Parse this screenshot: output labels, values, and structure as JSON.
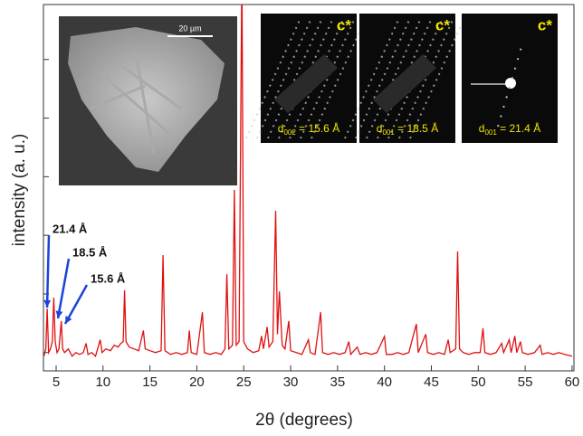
{
  "chart_data": {
    "type": "line",
    "xlabel": "2θ (degrees)",
    "ylabel": "intensity (a. u.)",
    "xlim": [
      3.65,
      60.2
    ],
    "xticks": [
      5,
      10,
      15,
      20,
      25,
      30,
      35,
      40,
      45,
      50,
      55,
      60
    ],
    "ylim": [
      0,
      100
    ],
    "yticks": [
      5,
      21,
      37,
      53,
      69,
      85
    ],
    "series": [
      {
        "color": "#e01010",
        "x": [
          3.7,
          3.9,
          4.05,
          4.2,
          4.4,
          4.6,
          4.75,
          4.9,
          5.1,
          5.3,
          5.55,
          5.7,
          5.9,
          6.3,
          6.7,
          7.1,
          7.5,
          7.9,
          8.2,
          8.4,
          8.8,
          9.2,
          9.7,
          9.9,
          10.3,
          10.8,
          11.2,
          11.6,
          11.9,
          12.15,
          12.3,
          12.45,
          12.8,
          13.3,
          13.8,
          14.3,
          14.5,
          15,
          15.6,
          16.2,
          16.4,
          16.6,
          17.2,
          17.8,
          18.4,
          19,
          19.2,
          19.4,
          20,
          20.6,
          20.8,
          21.4,
          22,
          22.6,
          23.0,
          23.2,
          23.4,
          23.8,
          24.0,
          24.2,
          24.5,
          24.8,
          25.0,
          25.4,
          26,
          26.6,
          26.9,
          27.1,
          27.5,
          27.7,
          28.1,
          28.4,
          28.6,
          28.8,
          29.1,
          29.4,
          29.8,
          30,
          30.6,
          31.2,
          31.9,
          32.1,
          32.6,
          33.2,
          33.4,
          34,
          34.6,
          35.2,
          35.8,
          36.2,
          36.4,
          37.1,
          37.4,
          38,
          38.6,
          39.2,
          40.0,
          40.2,
          40.8,
          41.4,
          42,
          42.6,
          43.4,
          43.6,
          44.4,
          44.6,
          45.2,
          45.8,
          46.4,
          46.8,
          47,
          47.6,
          47.8,
          48,
          48.4,
          49,
          49.6,
          50.2,
          50.5,
          50.7,
          51.3,
          51.9,
          52.5,
          52.7,
          53.3,
          53.5,
          53.9,
          54.1,
          54.5,
          54.7,
          55.3,
          56,
          56.6,
          56.8,
          57.4,
          58,
          58.6,
          59.2,
          60
        ],
        "values": [
          4,
          6,
          17,
          5,
          6,
          8,
          20,
          8,
          5,
          6,
          13.6,
          6,
          5,
          6,
          4,
          5,
          4.5,
          5,
          7.5,
          4.5,
          5,
          4,
          8.5,
          5,
          6,
          5.5,
          7,
          6.5,
          7.5,
          8,
          22,
          8,
          6.5,
          6,
          5.5,
          11,
          6,
          5.5,
          5,
          5.5,
          31.6,
          5.5,
          4.5,
          5,
          4.5,
          5,
          11,
          5,
          4.5,
          16,
          5,
          4.5,
          5,
          4.5,
          6,
          26.4,
          6,
          7,
          49.4,
          7,
          8,
          110,
          8,
          6,
          5,
          5.5,
          9.5,
          6,
          12,
          6.5,
          8,
          43.7,
          10,
          21.7,
          7,
          6,
          13.6,
          5.5,
          5,
          4.5,
          8.5,
          5,
          4.5,
          16,
          5,
          4.5,
          5,
          4.5,
          5,
          8,
          4.5,
          6.5,
          4.5,
          5,
          4.5,
          5,
          9.4,
          4.5,
          4.5,
          5,
          4.5,
          5,
          12.8,
          5,
          10,
          5,
          4.5,
          5,
          4.5,
          8.5,
          5,
          6,
          32.6,
          6,
          5,
          4.5,
          5,
          5,
          11.6,
          5,
          4.5,
          5,
          7.5,
          5,
          8.5,
          5,
          9.5,
          5,
          8,
          5,
          4.5,
          5,
          7,
          4.5,
          5,
          4.5,
          5,
          4.5,
          4
        ]
      }
    ],
    "annotations": [
      {
        "text": "21.4 Å"
      },
      {
        "text": "18.5 Å"
      },
      {
        "text": "15.6 Å"
      }
    ],
    "insets": {
      "scale_bar": "20 µm",
      "panels": [
        {
          "axis": "c*",
          "d": "d",
          "index": "002",
          "rest": " = 15.6 Å"
        },
        {
          "axis": "c*",
          "d": "d",
          "index": "001",
          "rest": " = 18.5 Å"
        },
        {
          "axis": "c*",
          "d": "d",
          "index": "001",
          "rest": " = 21.4 Å"
        }
      ]
    }
  }
}
